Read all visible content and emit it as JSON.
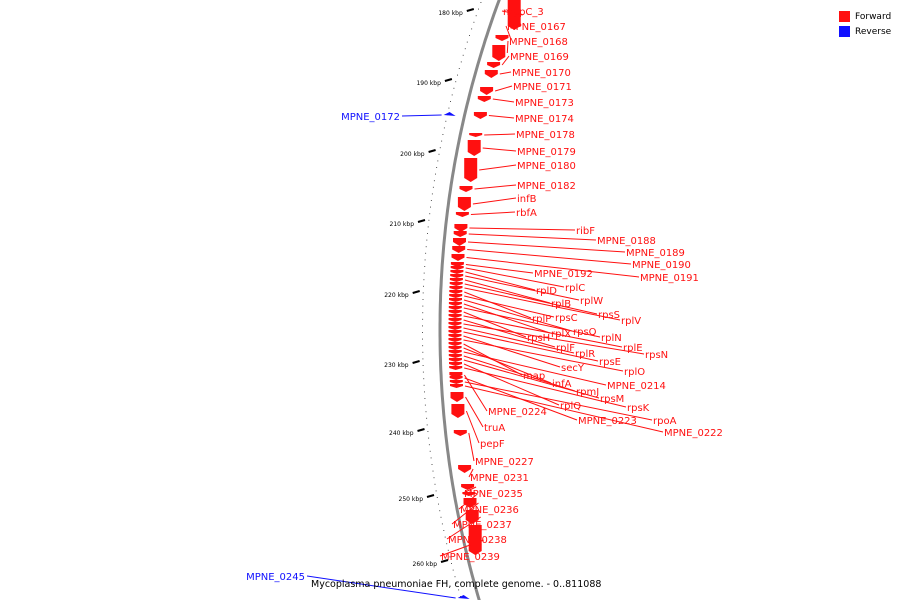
{
  "legend": [
    {
      "label": "Forward",
      "color": "#ff1010"
    },
    {
      "label": "Reverse",
      "color": "#1010ff"
    }
  ],
  "caption": "Mycoplasma pneumoniae FH, complete genome. - 0..811088",
  "colors": {
    "forward": "#ff1010",
    "reverse": "#1010ff",
    "axis": "#888888",
    "tick": "#000000"
  },
  "axis_ticks": [
    "180 kbp",
    "190 kbp",
    "200 kbp",
    "210 kbp",
    "220 kbp",
    "230 kbp",
    "240 kbp",
    "250 kbp",
    "260 kbp"
  ],
  "genes": [
    {
      "label": "mgpC_3",
      "strand": "forward"
    },
    {
      "label": "MPNE_0167",
      "strand": "forward"
    },
    {
      "label": "MPNE_0168",
      "strand": "forward"
    },
    {
      "label": "MPNE_0169",
      "strand": "forward"
    },
    {
      "label": "MPNE_0170",
      "strand": "forward"
    },
    {
      "label": "MPNE_0171",
      "strand": "forward"
    },
    {
      "label": "MPNE_0172",
      "strand": "reverse"
    },
    {
      "label": "MPNE_0173",
      "strand": "forward"
    },
    {
      "label": "MPNE_0174",
      "strand": "forward"
    },
    {
      "label": "MPNE_0178",
      "strand": "forward"
    },
    {
      "label": "MPNE_0179",
      "strand": "forward"
    },
    {
      "label": "MPNE_0180",
      "strand": "forward"
    },
    {
      "label": "MPNE_0182",
      "strand": "forward"
    },
    {
      "label": "infB",
      "strand": "forward"
    },
    {
      "label": "rbfA",
      "strand": "forward"
    },
    {
      "label": "ribF",
      "strand": "forward"
    },
    {
      "label": "MPNE_0188",
      "strand": "forward"
    },
    {
      "label": "MPNE_0189",
      "strand": "forward"
    },
    {
      "label": "MPNE_0190",
      "strand": "forward"
    },
    {
      "label": "MPNE_0191",
      "strand": "forward"
    },
    {
      "label": "MPNE_0192",
      "strand": "forward"
    },
    {
      "label": "rplC",
      "strand": "forward"
    },
    {
      "label": "rplD",
      "strand": "forward"
    },
    {
      "label": "rplW",
      "strand": "forward"
    },
    {
      "label": "rplB",
      "strand": "forward"
    },
    {
      "label": "rpsS",
      "strand": "forward"
    },
    {
      "label": "rplV",
      "strand": "forward"
    },
    {
      "label": "rplP",
      "strand": "forward"
    },
    {
      "label": "rpsC",
      "strand": "forward"
    },
    {
      "label": "rpsQ",
      "strand": "forward"
    },
    {
      "label": "rplX",
      "strand": "forward"
    },
    {
      "label": "rplN",
      "strand": "forward"
    },
    {
      "label": "rpsH",
      "strand": "forward"
    },
    {
      "label": "rplE",
      "strand": "forward"
    },
    {
      "label": "rplF",
      "strand": "forward"
    },
    {
      "label": "rpsN",
      "strand": "forward"
    },
    {
      "label": "rplR",
      "strand": "forward"
    },
    {
      "label": "rpsE",
      "strand": "forward"
    },
    {
      "label": "secY",
      "strand": "forward"
    },
    {
      "label": "rplO",
      "strand": "forward"
    },
    {
      "label": "map",
      "strand": "forward"
    },
    {
      "label": "infA",
      "strand": "forward"
    },
    {
      "label": "MPNE_0214",
      "strand": "forward"
    },
    {
      "label": "rpmJ",
      "strand": "forward"
    },
    {
      "label": "rpsM",
      "strand": "forward"
    },
    {
      "label": "rplQ",
      "strand": "forward"
    },
    {
      "label": "rpsK",
      "strand": "forward"
    },
    {
      "label": "MPNE_0224",
      "strand": "forward"
    },
    {
      "label": "MPNE_0223",
      "strand": "forward"
    },
    {
      "label": "rpoA",
      "strand": "forward"
    },
    {
      "label": "MPNE_0222",
      "strand": "forward"
    },
    {
      "label": "truA",
      "strand": "forward"
    },
    {
      "label": "pepF",
      "strand": "forward"
    },
    {
      "label": "MPNE_0227",
      "strand": "forward"
    },
    {
      "label": "MPNE_0231",
      "strand": "forward"
    },
    {
      "label": "MPNE_0235",
      "strand": "forward"
    },
    {
      "label": "MPNE_0236",
      "strand": "forward"
    },
    {
      "label": "MPNE_0237",
      "strand": "forward"
    },
    {
      "label": "MPNE_0238",
      "strand": "forward"
    },
    {
      "label": "MPNE_0239",
      "strand": "forward"
    },
    {
      "label": "MPNE_0245",
      "strand": "reverse"
    }
  ]
}
